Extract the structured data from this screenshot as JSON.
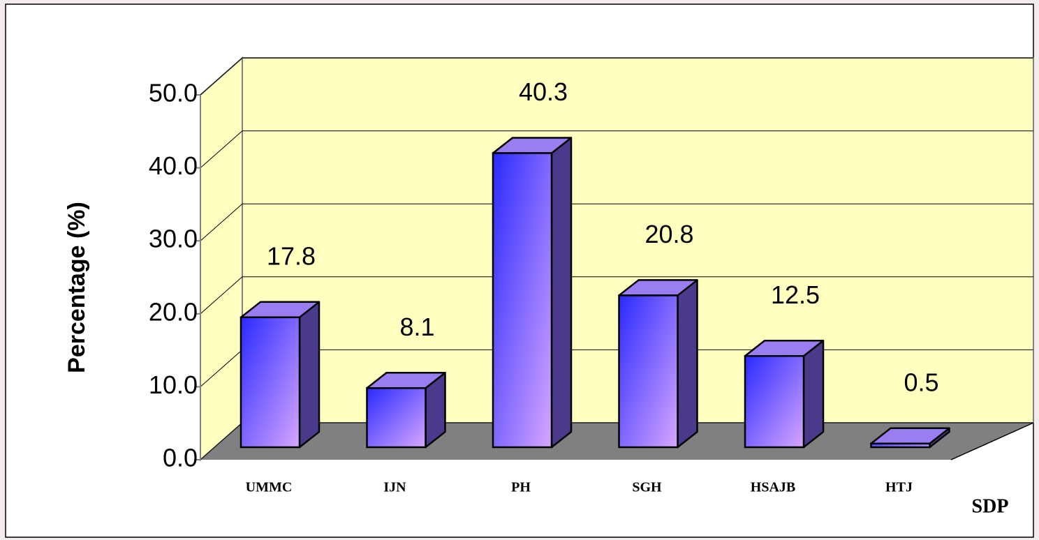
{
  "chart_data": {
    "type": "bar",
    "categories": [
      "UMMC",
      "IJN",
      "PH",
      "SGH",
      "HSAJB",
      "HTJ"
    ],
    "values": [
      17.8,
      8.1,
      40.3,
      20.8,
      12.5,
      0.5
    ],
    "y_label": "Percentage (%)",
    "x_label": "SDP",
    "ylim": [
      0,
      50
    ],
    "yticks": [
      {
        "value": 0,
        "label": "0.0"
      },
      {
        "value": 10,
        "label": "10.0"
      },
      {
        "value": 20,
        "label": "20.0"
      },
      {
        "value": 30,
        "label": "30.0"
      },
      {
        "value": 40,
        "label": "40.0"
      },
      {
        "value": 50,
        "label": "50.0"
      }
    ],
    "grid": true,
    "color": "#5a4cff",
    "wall_color": "#ffffc0",
    "floor_color": "#808080"
  }
}
